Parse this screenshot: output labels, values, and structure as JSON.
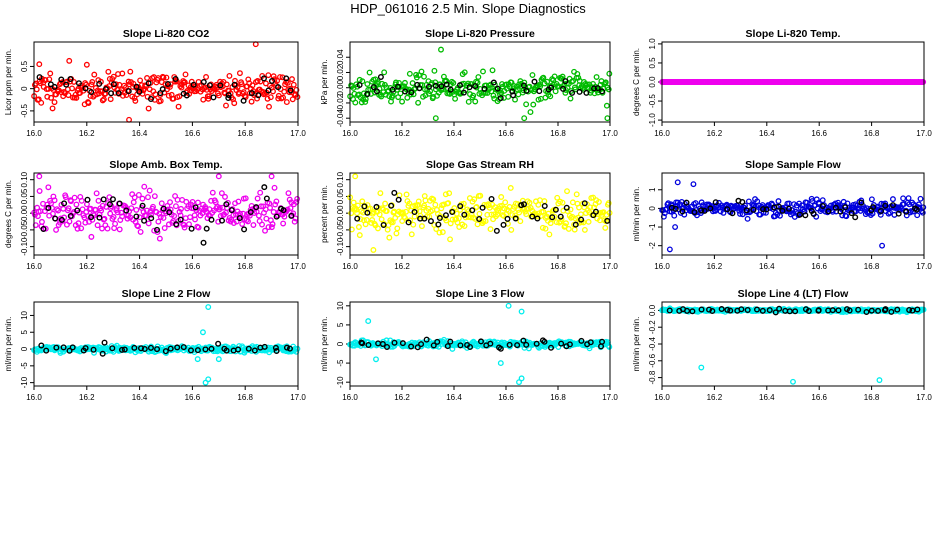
{
  "figure_title": "HDP_061016  2.5 Min. Slope Diagnostics",
  "chart_data": [
    {
      "type": "scatter",
      "title": "Slope Li-820 CO2",
      "ylabel": "Licor ppm per min.",
      "xlim": [
        16.0,
        17.0
      ],
      "ylim": [
        -0.75,
        1.05
      ],
      "xticks": [
        "16.0",
        "16.2",
        "16.4",
        "16.6",
        "16.8",
        "17.0"
      ],
      "yticks": [
        -0.5,
        0,
        0.5
      ],
      "yticklabels": [
        "-0.5",
        "0",
        "0.5"
      ],
      "color": "#ff0000",
      "spread": 0.32,
      "outliers": [
        [
          16.84,
          1.0
        ],
        [
          16.36,
          -0.7
        ],
        [
          16.02,
          0.55
        ]
      ],
      "black_count": 42,
      "black_spread": 0.25,
      "seed": 11
    },
    {
      "type": "scatter",
      "title": "Slope Li-820 Pressure",
      "ylabel": "kPa per min.",
      "xlim": [
        16.0,
        17.0
      ],
      "ylim": [
        -0.045,
        0.06
      ],
      "xticks": [
        "16.0",
        "16.2",
        "16.4",
        "16.6",
        "16.8",
        "17.0"
      ],
      "yticks": [
        -0.04,
        -0.02,
        0.0,
        0.02,
        0.04
      ],
      "yticklabels": [
        "-0.04",
        "-0.02",
        "0.00",
        "0.02",
        "0.04"
      ],
      "color": "#00bb00",
      "spread": 0.016,
      "outliers": [
        [
          16.35,
          0.05
        ],
        [
          16.33,
          -0.04
        ],
        [
          16.67,
          -0.04
        ],
        [
          16.99,
          -0.04
        ]
      ],
      "black_count": 40,
      "black_spread": 0.009,
      "seed": 23
    },
    {
      "type": "scatter",
      "title": "Slope Li-820 Temp.",
      "ylabel": "degrees C per min.",
      "xlim": [
        16.0,
        17.0
      ],
      "ylim": [
        -1.05,
        1.05
      ],
      "xticks": [
        "16.0",
        "16.2",
        "16.4",
        "16.6",
        "16.8",
        "17.0"
      ],
      "yticks": [
        -1.0,
        -0.5,
        0.0,
        0.5,
        1.0
      ],
      "yticklabels": [
        "-1.0",
        "-0.5",
        "0.0",
        "0.5",
        "1.0"
      ],
      "color": "#ee00ee",
      "spread": 0.0,
      "outliers": [],
      "black_count": 0,
      "black_spread": 0.0,
      "seed": 37
    },
    {
      "type": "scatter",
      "title": "Slope Amb. Box Temp.",
      "ylabel": "degrees C per min.",
      "xlim": [
        16.0,
        17.0
      ],
      "ylim": [
        -0.125,
        0.12
      ],
      "xticks": [
        "16.0",
        "16.2",
        "16.4",
        "16.6",
        "16.8",
        "17.0"
      ],
      "yticks": [
        -0.1,
        -0.05,
        0.0,
        0.05,
        0.1
      ],
      "yticklabels": [
        "-0.10",
        "-0.05",
        "0.00",
        "0.05",
        "0.10"
      ],
      "color": "#ee00ee",
      "spread": 0.055,
      "outliers": [
        [
          16.02,
          0.11
        ],
        [
          16.7,
          0.11
        ],
        [
          16.9,
          0.11
        ]
      ],
      "black_count": 42,
      "black_spread": 0.05,
      "seed": 41
    },
    {
      "type": "scatter",
      "title": "Slope Gas Stream RH",
      "ylabel": "percent per min.",
      "xlim": [
        16.0,
        17.0
      ],
      "ylim": [
        -0.125,
        0.12
      ],
      "xticks": [
        "16.0",
        "16.2",
        "16.4",
        "16.6",
        "16.8",
        "17.0"
      ],
      "yticks": [
        -0.1,
        -0.05,
        0.0,
        0.05,
        0.1
      ],
      "yticklabels": [
        "-0.10",
        "-0.05",
        "0.00",
        "0.05",
        "0.10"
      ],
      "color": "#ffff00",
      "spread": 0.05,
      "outliers": [
        [
          16.02,
          0.11
        ],
        [
          16.09,
          -0.11
        ]
      ],
      "black_count": 42,
      "black_spread": 0.045,
      "seed": 53
    },
    {
      "type": "scatter",
      "title": "Slope Sample Flow",
      "ylabel": "ml/min per min.",
      "xlim": [
        16.0,
        17.0
      ],
      "ylim": [
        -2.5,
        1.9
      ],
      "xticks": [
        "16.0",
        "16.2",
        "16.4",
        "16.6",
        "16.8",
        "17.0"
      ],
      "yticks": [
        -2,
        -1,
        0,
        1
      ],
      "yticklabels": [
        "-2",
        "-1",
        "0",
        "1"
      ],
      "color": "#0000dd",
      "spread": 0.35,
      "outliers": [
        [
          16.03,
          -2.2
        ],
        [
          16.84,
          -2.0
        ],
        [
          16.12,
          1.3
        ],
        [
          16.06,
          1.4
        ],
        [
          16.05,
          -1.0
        ]
      ],
      "black_count": 42,
      "black_spread": 0.35,
      "seed": 67
    },
    {
      "type": "scatter",
      "title": "Slope Line 2 Flow",
      "ylabel": "ml/min per min.",
      "xlim": [
        16.0,
        17.0
      ],
      "ylim": [
        -11,
        14
      ],
      "xticks": [
        "16.0",
        "16.2",
        "16.4",
        "16.6",
        "16.8",
        "17.0"
      ],
      "yticks": [
        -10,
        -5,
        0,
        5,
        10
      ],
      "yticklabels": [
        "-10",
        "-5",
        "0",
        "5",
        "10"
      ],
      "color": "#00eeee",
      "spread": 0.8,
      "outliers": [
        [
          16.66,
          12.5
        ],
        [
          16.64,
          5
        ],
        [
          16.66,
          -9
        ],
        [
          16.65,
          -10
        ],
        [
          16.62,
          -3
        ],
        [
          16.7,
          -3
        ]
      ],
      "black_count": 40,
      "black_spread": 1.2,
      "seed": 71
    },
    {
      "type": "scatter",
      "title": "Slope Line 3 Flow",
      "ylabel": "ml/min per min.",
      "xlim": [
        16.0,
        17.0
      ],
      "ylim": [
        -11,
        11
      ],
      "xticks": [
        "16.0",
        "16.2",
        "16.4",
        "16.6",
        "16.8",
        "17.0"
      ],
      "yticks": [
        -10,
        -5,
        0,
        5,
        10
      ],
      "yticklabels": [
        "-10",
        "-5",
        "0",
        "5",
        "10"
      ],
      "color": "#00eeee",
      "spread": 0.7,
      "outliers": [
        [
          16.61,
          10
        ],
        [
          16.66,
          8.5
        ],
        [
          16.66,
          -9
        ],
        [
          16.65,
          -10
        ],
        [
          16.58,
          -5
        ],
        [
          16.07,
          6
        ],
        [
          16.1,
          -4
        ]
      ],
      "black_count": 40,
      "black_spread": 1.2,
      "seed": 83
    },
    {
      "type": "scatter",
      "title": "Slope Line 4 (LT) Flow",
      "ylabel": "ml/min per min.",
      "xlim": [
        16.0,
        17.0
      ],
      "ylim": [
        -0.9,
        0.1
      ],
      "xticks": [
        "16.0",
        "16.2",
        "16.4",
        "16.6",
        "16.8",
        "17.0"
      ],
      "yticks": [
        -0.8,
        -0.6,
        -0.4,
        -0.2,
        0.0
      ],
      "yticklabels": [
        "-0.8",
        "-0.6",
        "-0.4",
        "-0.2",
        "0.0"
      ],
      "color": "#00eeee",
      "spread": 0.015,
      "outliers": [
        [
          16.15,
          -0.68
        ],
        [
          16.5,
          -0.85
        ],
        [
          16.83,
          -0.83
        ]
      ],
      "black_count": 42,
      "black_spread": 0.02,
      "seed": 97
    }
  ]
}
